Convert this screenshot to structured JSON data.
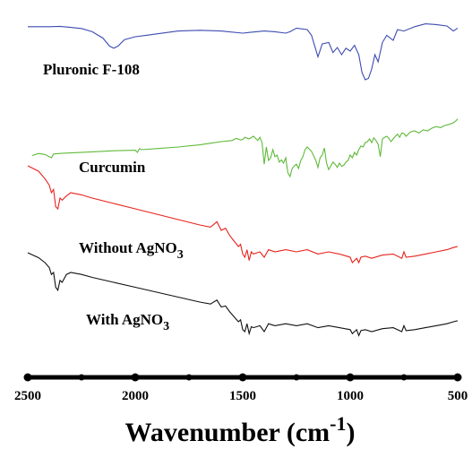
{
  "chart_data": {
    "type": "line",
    "title": "",
    "xlabel": "Wavenumber (cm",
    "xlabel_sup": "-1",
    "xlabel_close": ")",
    "ylabel": "",
    "xlim": [
      2500,
      500
    ],
    "x_reversed": true,
    "y_axis_shown": false,
    "grid": false,
    "legend": "none",
    "x_ticks": [
      2500,
      2000,
      1500,
      1000,
      500
    ],
    "x_minor_ticks": [
      2250,
      1750,
      1250,
      750
    ],
    "series": [
      {
        "name": "Pluronic F-108",
        "label_parts": [
          "Pluronic F-108"
        ],
        "color": "#3c4bb0",
        "points": [
          [
            2500,
            0.06
          ],
          [
            2400,
            0.06
          ],
          [
            2350,
            0.055
          ],
          [
            2300,
            0.07
          ],
          [
            2250,
            0.085
          ],
          [
            2200,
            0.13
          ],
          [
            2150,
            0.22
          ],
          [
            2120,
            0.33
          ],
          [
            2100,
            0.36
          ],
          [
            2080,
            0.33
          ],
          [
            2050,
            0.24
          ],
          [
            2000,
            0.2
          ],
          [
            1950,
            0.18
          ],
          [
            1900,
            0.16
          ],
          [
            1800,
            0.12
          ],
          [
            1700,
            0.11
          ],
          [
            1600,
            0.12
          ],
          [
            1500,
            0.15
          ],
          [
            1470,
            0.14
          ],
          [
            1400,
            0.12
          ],
          [
            1350,
            0.13
          ],
          [
            1300,
            0.15
          ],
          [
            1280,
            0.13
          ],
          [
            1250,
            0.08
          ],
          [
            1200,
            0.1
          ],
          [
            1180,
            0.18
          ],
          [
            1150,
            0.48
          ],
          [
            1130,
            0.3
          ],
          [
            1100,
            0.28
          ],
          [
            1080,
            0.42
          ],
          [
            1060,
            0.35
          ],
          [
            1040,
            0.45
          ],
          [
            1020,
            0.36
          ],
          [
            1000,
            0.4
          ],
          [
            980,
            0.32
          ],
          [
            960,
            0.45
          ],
          [
            945,
            0.7
          ],
          [
            930,
            0.8
          ],
          [
            915,
            0.78
          ],
          [
            900,
            0.65
          ],
          [
            885,
            0.45
          ],
          [
            870,
            0.55
          ],
          [
            850,
            0.28
          ],
          [
            830,
            0.18
          ],
          [
            800,
            0.25
          ],
          [
            780,
            0.1
          ],
          [
            750,
            0.12
          ],
          [
            700,
            0.06
          ],
          [
            650,
            0.02
          ],
          [
            600,
            0.03
          ],
          [
            550,
            0.05
          ],
          [
            520,
            0.12
          ],
          [
            500,
            0.08
          ]
        ]
      },
      {
        "name": "Curcumin",
        "label_parts": [
          "Curcumin"
        ],
        "color": "#5fba3a",
        "points": [
          [
            2480,
            0.06
          ],
          [
            2450,
            0.02
          ],
          [
            2420,
            0.04
          ],
          [
            2390,
            0.1
          ],
          [
            2380,
            0.03
          ],
          [
            2350,
            0.02
          ],
          [
            2300,
            0.01
          ],
          [
            2200,
            -0.01
          ],
          [
            2100,
            -0.03
          ],
          [
            2000,
            -0.04
          ],
          [
            1990,
            0.0
          ],
          [
            1980,
            -0.07
          ],
          [
            1970,
            -0.05
          ],
          [
            1900,
            -0.07
          ],
          [
            1800,
            -0.1
          ],
          [
            1700,
            -0.14
          ],
          [
            1650,
            -0.17
          ],
          [
            1600,
            -0.2
          ],
          [
            1550,
            -0.22
          ],
          [
            1530,
            -0.26
          ],
          [
            1510,
            -0.23
          ],
          [
            1500,
            -0.24
          ],
          [
            1490,
            -0.28
          ],
          [
            1470,
            -0.25
          ],
          [
            1450,
            -0.3
          ],
          [
            1430,
            -0.22
          ],
          [
            1420,
            -0.28
          ],
          [
            1410,
            -0.18
          ],
          [
            1400,
            0.22
          ],
          [
            1390,
            -0.1
          ],
          [
            1380,
            0.15
          ],
          [
            1370,
            0.1
          ],
          [
            1360,
            -0.05
          ],
          [
            1350,
            0.08
          ],
          [
            1340,
            0.05
          ],
          [
            1330,
            0.18
          ],
          [
            1320,
            0.14
          ],
          [
            1310,
            0.2
          ],
          [
            1300,
            0.1
          ],
          [
            1290,
            0.38
          ],
          [
            1280,
            0.45
          ],
          [
            1270,
            0.3
          ],
          [
            1260,
            0.25
          ],
          [
            1250,
            0.22
          ],
          [
            1240,
            0.3
          ],
          [
            1230,
            0.15
          ],
          [
            1220,
            0.08
          ],
          [
            1210,
            -0.05
          ],
          [
            1200,
            -0.1
          ],
          [
            1180,
            -0.02
          ],
          [
            1160,
            0.15
          ],
          [
            1150,
            0.28
          ],
          [
            1140,
            0.1
          ],
          [
            1130,
            0.05
          ],
          [
            1120,
            -0.08
          ],
          [
            1110,
            0.2
          ],
          [
            1100,
            0.32
          ],
          [
            1090,
            0.25
          ],
          [
            1080,
            0.18
          ],
          [
            1070,
            0.22
          ],
          [
            1060,
            0.28
          ],
          [
            1050,
            0.2
          ],
          [
            1040,
            0.26
          ],
          [
            1030,
            0.24
          ],
          [
            1020,
            0.18
          ],
          [
            1010,
            0.15
          ],
          [
            1000,
            0.05
          ],
          [
            990,
            0.1
          ],
          [
            980,
            0.0
          ],
          [
            970,
            0.05
          ],
          [
            960,
            -0.05
          ],
          [
            950,
            -0.12
          ],
          [
            940,
            -0.1
          ],
          [
            930,
            -0.18
          ],
          [
            920,
            -0.2
          ],
          [
            910,
            -0.25
          ],
          [
            900,
            -0.18
          ],
          [
            890,
            -0.27
          ],
          [
            880,
            -0.22
          ],
          [
            870,
            -0.15
          ],
          [
            860,
            0.08
          ],
          [
            850,
            -0.25
          ],
          [
            840,
            -0.28
          ],
          [
            830,
            -0.3
          ],
          [
            820,
            -0.26
          ],
          [
            810,
            -0.2
          ],
          [
            800,
            -0.25
          ],
          [
            790,
            -0.3
          ],
          [
            780,
            -0.34
          ],
          [
            770,
            -0.28
          ],
          [
            760,
            -0.36
          ],
          [
            750,
            -0.35
          ],
          [
            740,
            -0.3
          ],
          [
            720,
            -0.38
          ],
          [
            700,
            -0.4
          ],
          [
            680,
            -0.36
          ],
          [
            660,
            -0.42
          ],
          [
            640,
            -0.4
          ],
          [
            620,
            -0.45
          ],
          [
            600,
            -0.48
          ],
          [
            580,
            -0.46
          ],
          [
            560,
            -0.5
          ],
          [
            540,
            -0.52
          ],
          [
            520,
            -0.55
          ],
          [
            510,
            -0.58
          ],
          [
            500,
            -0.62
          ]
        ]
      },
      {
        "name": "Without AgNO3",
        "label_parts": [
          "Without AgNO",
          "3"
        ],
        "color": "#e8221c",
        "points": [
          [
            2500,
            0.0
          ],
          [
            2450,
            0.05
          ],
          [
            2420,
            0.12
          ],
          [
            2400,
            0.18
          ],
          [
            2390,
            0.25
          ],
          [
            2380,
            0.22
          ],
          [
            2370,
            0.38
          ],
          [
            2360,
            0.4
          ],
          [
            2350,
            0.3
          ],
          [
            2340,
            0.32
          ],
          [
            2320,
            0.28
          ],
          [
            2300,
            0.25
          ],
          [
            2250,
            0.27
          ],
          [
            2200,
            0.3
          ],
          [
            2100,
            0.35
          ],
          [
            2000,
            0.4
          ],
          [
            1900,
            0.45
          ],
          [
            1800,
            0.5
          ],
          [
            1700,
            0.55
          ],
          [
            1650,
            0.57
          ],
          [
            1620,
            0.52
          ],
          [
            1600,
            0.6
          ],
          [
            1580,
            0.58
          ],
          [
            1560,
            0.65
          ],
          [
            1540,
            0.7
          ],
          [
            1520,
            0.75
          ],
          [
            1510,
            0.73
          ],
          [
            1500,
            0.82
          ],
          [
            1490,
            0.85
          ],
          [
            1480,
            0.78
          ],
          [
            1470,
            0.88
          ],
          [
            1460,
            0.8
          ],
          [
            1450,
            0.82
          ],
          [
            1420,
            0.8
          ],
          [
            1400,
            0.85
          ],
          [
            1380,
            0.78
          ],
          [
            1350,
            0.8
          ],
          [
            1300,
            0.78
          ],
          [
            1250,
            0.8
          ],
          [
            1200,
            0.78
          ],
          [
            1150,
            0.82
          ],
          [
            1100,
            0.8
          ],
          [
            1050,
            0.82
          ],
          [
            1000,
            0.85
          ],
          [
            990,
            0.9
          ],
          [
            980,
            0.88
          ],
          [
            970,
            0.86
          ],
          [
            960,
            0.9
          ],
          [
            950,
            0.85
          ],
          [
            930,
            0.84
          ],
          [
            900,
            0.86
          ],
          [
            850,
            0.83
          ],
          [
            800,
            0.82
          ],
          [
            760,
            0.86
          ],
          [
            750,
            0.8
          ],
          [
            740,
            0.85
          ],
          [
            700,
            0.84
          ],
          [
            650,
            0.82
          ],
          [
            600,
            0.8
          ],
          [
            550,
            0.78
          ],
          [
            520,
            0.76
          ],
          [
            500,
            0.75
          ]
        ]
      },
      {
        "name": "With AgNO3",
        "label_parts": [
          "With AgNO",
          "3"
        ],
        "color": "#111111",
        "points": [
          [
            2500,
            0.0
          ],
          [
            2450,
            0.05
          ],
          [
            2420,
            0.1
          ],
          [
            2400,
            0.15
          ],
          [
            2390,
            0.22
          ],
          [
            2380,
            0.2
          ],
          [
            2370,
            0.35
          ],
          [
            2360,
            0.38
          ],
          [
            2350,
            0.28
          ],
          [
            2340,
            0.3
          ],
          [
            2320,
            0.22
          ],
          [
            2300,
            0.2
          ],
          [
            2250,
            0.22
          ],
          [
            2200,
            0.25
          ],
          [
            2100,
            0.3
          ],
          [
            2000,
            0.35
          ],
          [
            1900,
            0.4
          ],
          [
            1800,
            0.45
          ],
          [
            1700,
            0.5
          ],
          [
            1650,
            0.52
          ],
          [
            1620,
            0.48
          ],
          [
            1600,
            0.55
          ],
          [
            1580,
            0.54
          ],
          [
            1560,
            0.6
          ],
          [
            1540,
            0.65
          ],
          [
            1520,
            0.7
          ],
          [
            1510,
            0.68
          ],
          [
            1500,
            0.78
          ],
          [
            1490,
            0.8
          ],
          [
            1480,
            0.72
          ],
          [
            1470,
            0.82
          ],
          [
            1460,
            0.75
          ],
          [
            1450,
            0.76
          ],
          [
            1420,
            0.74
          ],
          [
            1400,
            0.8
          ],
          [
            1380,
            0.72
          ],
          [
            1350,
            0.74
          ],
          [
            1300,
            0.72
          ],
          [
            1250,
            0.74
          ],
          [
            1200,
            0.72
          ],
          [
            1150,
            0.76
          ],
          [
            1100,
            0.74
          ],
          [
            1050,
            0.76
          ],
          [
            1000,
            0.78
          ],
          [
            990,
            0.82
          ],
          [
            980,
            0.8
          ],
          [
            970,
            0.78
          ],
          [
            960,
            0.84
          ],
          [
            950,
            0.79
          ],
          [
            930,
            0.78
          ],
          [
            900,
            0.8
          ],
          [
            850,
            0.77
          ],
          [
            800,
            0.76
          ],
          [
            760,
            0.8
          ],
          [
            750,
            0.74
          ],
          [
            740,
            0.79
          ],
          [
            700,
            0.78
          ],
          [
            650,
            0.76
          ],
          [
            600,
            0.74
          ],
          [
            550,
            0.72
          ],
          [
            520,
            0.7
          ],
          [
            500,
            0.69
          ]
        ]
      }
    ]
  }
}
